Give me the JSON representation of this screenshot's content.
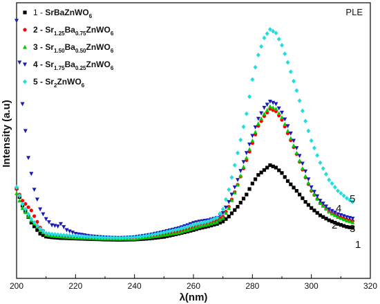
{
  "chart_data": {
    "type": "scatter",
    "title": "",
    "xlabel": "λ(nm)",
    "ylabel": "Intensity (a.u)",
    "xlim": [
      200,
      320
    ],
    "ylim": [
      0,
      1
    ],
    "x_ticks": [
      "200",
      "220",
      "240",
      "260",
      "280",
      "300",
      "320"
    ],
    "y_ticks_shown": false,
    "grid": false,
    "legend_position": "top-left",
    "panel_label": "PLE",
    "series": [
      {
        "name": "1 - SrBaZnWO6",
        "legend_parts": [
          {
            "text": "1 - ",
            "bold": false,
            "sub": false
          },
          {
            "text": "SrBaZnWO",
            "bold": true,
            "sub": false
          },
          {
            "text": "6",
            "bold": true,
            "sub": true
          }
        ],
        "end_label": "1",
        "color": "#000000",
        "marker": "square",
        "x": [
          200,
          202,
          205,
          208,
          210,
          212,
          215,
          218,
          220,
          225,
          230,
          235,
          240,
          245,
          250,
          255,
          258,
          260,
          262,
          265,
          268,
          270,
          272,
          275,
          278,
          280,
          282,
          284,
          286,
          288,
          290,
          292,
          295,
          298,
          300,
          303,
          306,
          309,
          312,
          314
        ],
        "y": [
          0.255,
          0.185,
          0.115,
          0.07,
          0.058,
          0.055,
          0.052,
          0.051,
          0.05,
          0.048,
          0.046,
          0.045,
          0.046,
          0.05,
          0.057,
          0.07,
          0.079,
          0.085,
          0.092,
          0.1,
          0.11,
          0.12,
          0.14,
          0.18,
          0.23,
          0.275,
          0.31,
          0.33,
          0.35,
          0.34,
          0.318,
          0.285,
          0.245,
          0.2,
          0.175,
          0.145,
          0.125,
          0.11,
          0.098,
          0.094
        ]
      },
      {
        "name": "2 - Sr1.25Ba0.75ZnWO6",
        "legend_parts": [
          {
            "text": "2 - Sr",
            "bold": true,
            "sub": false
          },
          {
            "text": "1.25",
            "bold": true,
            "sub": true
          },
          {
            "text": "Ba",
            "bold": true,
            "sub": false
          },
          {
            "text": "0.75",
            "bold": true,
            "sub": true
          },
          {
            "text": "ZnWO",
            "bold": true,
            "sub": false
          },
          {
            "text": "6",
            "bold": true,
            "sub": true
          }
        ],
        "end_label": "2",
        "color": "#ff0000",
        "marker": "circle",
        "x": [
          200,
          202,
          205,
          208,
          210,
          212,
          215,
          218,
          220,
          225,
          230,
          235,
          240,
          245,
          250,
          255,
          258,
          260,
          262,
          265,
          268,
          270,
          272,
          275,
          278,
          280,
          282,
          284,
          286,
          288,
          290,
          292,
          295,
          298,
          300,
          303,
          306,
          309,
          312,
          314
        ],
        "y": [
          0.255,
          0.205,
          0.165,
          0.095,
          0.07,
          0.066,
          0.062,
          0.06,
          0.058,
          0.055,
          0.052,
          0.051,
          0.052,
          0.058,
          0.068,
          0.08,
          0.09,
          0.1,
          0.108,
          0.115,
          0.125,
          0.14,
          0.18,
          0.27,
          0.37,
          0.44,
          0.51,
          0.55,
          0.58,
          0.57,
          0.535,
          0.48,
          0.395,
          0.3,
          0.245,
          0.195,
          0.16,
          0.14,
          0.128,
          0.122
        ]
      },
      {
        "name": "3 - Sr1.50Ba0.50ZnWO6",
        "legend_parts": [
          {
            "text": "3 - Sr",
            "bold": true,
            "sub": false
          },
          {
            "text": "1.50",
            "bold": true,
            "sub": true
          },
          {
            "text": "Ba",
            "bold": true,
            "sub": false
          },
          {
            "text": "0.50",
            "bold": true,
            "sub": true
          },
          {
            "text": "ZnWO",
            "bold": true,
            "sub": false
          },
          {
            "text": "6",
            "bold": true,
            "sub": true
          }
        ],
        "end_label": "3",
        "color": "#00cc00",
        "marker": "triangle-up",
        "x": [
          200,
          202,
          205,
          208,
          210,
          212,
          215,
          218,
          220,
          225,
          230,
          235,
          240,
          245,
          250,
          255,
          258,
          260,
          262,
          265,
          268,
          270,
          272,
          275,
          278,
          280,
          282,
          284,
          286,
          288,
          290,
          292,
          295,
          298,
          300,
          303,
          306,
          309,
          312,
          314
        ],
        "y": [
          0.235,
          0.175,
          0.125,
          0.085,
          0.066,
          0.062,
          0.058,
          0.056,
          0.054,
          0.052,
          0.05,
          0.049,
          0.05,
          0.056,
          0.065,
          0.075,
          0.085,
          0.092,
          0.1,
          0.108,
          0.118,
          0.135,
          0.175,
          0.27,
          0.38,
          0.45,
          0.52,
          0.56,
          0.59,
          0.58,
          0.545,
          0.49,
          0.4,
          0.305,
          0.25,
          0.195,
          0.16,
          0.138,
          0.124,
          0.116
        ]
      },
      {
        "name": "4 - Sr1.75Ba0.25ZnWO6",
        "legend_parts": [
          {
            "text": "4 - Sr",
            "bold": true,
            "sub": false
          },
          {
            "text": "1.75",
            "bold": true,
            "sub": true
          },
          {
            "text": "Ba",
            "bold": true,
            "sub": false
          },
          {
            "text": "0.25",
            "bold": true,
            "sub": true
          },
          {
            "text": "ZnWO",
            "bold": true,
            "sub": false
          },
          {
            "text": "6",
            "bold": true,
            "sub": true
          }
        ],
        "end_label": "4",
        "color": "#1a1ab8",
        "marker": "triangle-down",
        "x": [
          200,
          202,
          204,
          206,
          208,
          210,
          212,
          214,
          215,
          217,
          220,
          225,
          230,
          235,
          240,
          245,
          250,
          255,
          258,
          260,
          262,
          265,
          268,
          270,
          272,
          275,
          278,
          280,
          282,
          284,
          286,
          288,
          290,
          292,
          295,
          298,
          300,
          303,
          306,
          309,
          312,
          314
        ],
        "y": [
          0.94,
          0.6,
          0.38,
          0.25,
          0.17,
          0.13,
          0.105,
          0.1,
          0.11,
          0.085,
          0.07,
          0.06,
          0.055,
          0.053,
          0.056,
          0.065,
          0.078,
          0.093,
          0.105,
          0.114,
          0.12,
          0.125,
          0.135,
          0.155,
          0.2,
          0.29,
          0.4,
          0.47,
          0.54,
          0.585,
          0.61,
          0.6,
          0.565,
          0.51,
          0.42,
          0.325,
          0.26,
          0.205,
          0.17,
          0.15,
          0.138,
          0.132
        ]
      },
      {
        "name": "5 - Sr2ZnWO6",
        "legend_parts": [
          {
            "text": "5 - Sr",
            "bold": true,
            "sub": false
          },
          {
            "text": "2",
            "bold": true,
            "sub": true
          },
          {
            "text": "ZnWO",
            "bold": true,
            "sub": false
          },
          {
            "text": "6",
            "bold": true,
            "sub": true
          }
        ],
        "end_label": "5",
        "color": "#22dddd",
        "marker": "diamond",
        "x": [
          200,
          202,
          205,
          208,
          210,
          212,
          215,
          218,
          220,
          225,
          230,
          235,
          240,
          245,
          250,
          255,
          258,
          260,
          262,
          265,
          268,
          270,
          272,
          275,
          278,
          280,
          282,
          284,
          286,
          288,
          290,
          292,
          295,
          298,
          300,
          303,
          306,
          309,
          312,
          314
        ],
        "y": [
          0.26,
          0.19,
          0.13,
          0.09,
          0.072,
          0.068,
          0.065,
          0.062,
          0.06,
          0.057,
          0.054,
          0.053,
          0.055,
          0.063,
          0.075,
          0.088,
          0.098,
          0.106,
          0.112,
          0.12,
          0.135,
          0.17,
          0.25,
          0.4,
          0.56,
          0.7,
          0.8,
          0.87,
          0.905,
          0.89,
          0.84,
          0.77,
          0.655,
          0.53,
          0.45,
          0.36,
          0.29,
          0.245,
          0.215,
          0.2
        ]
      }
    ]
  }
}
